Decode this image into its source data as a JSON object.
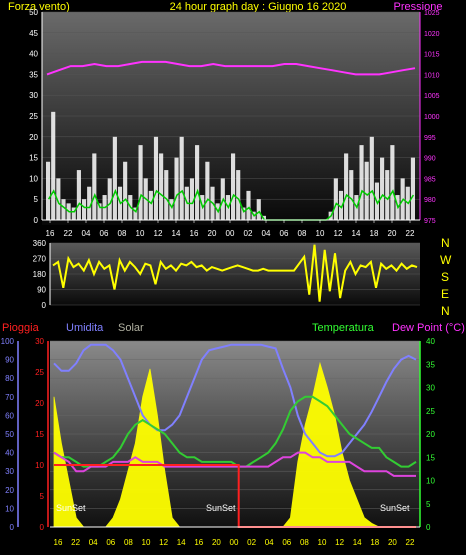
{
  "header": {
    "wind_title": "Forza vento)",
    "center_title": "24 hour graph day : Giugno 16 2020",
    "pressure_title": "Pressione"
  },
  "bottom_legend": {
    "rain": "Pioggia",
    "humidity": "Umidita",
    "solar": "Solar",
    "temperature": "Temperatura",
    "dewpoint": "Dew Point (°C)"
  },
  "sunset_labels": [
    "SunSet",
    "SunSet",
    "SunSet"
  ],
  "compass": [
    "N",
    "W",
    "S",
    "E",
    "N"
  ],
  "colors": {
    "wind": "#ffffff",
    "gust_avg": "#00cc00",
    "pressure": "#ff33ff",
    "direction": "#ffff00",
    "rain": "#ff2020",
    "humidity": "#8080ff",
    "solar": "#ffff00",
    "temperature": "#33cc33",
    "dewpoint": "#dd44dd",
    "title": "#ffff00"
  },
  "chart_data": [
    {
      "type": "line",
      "name": "wind-pressure",
      "x_ticks": [
        "16",
        "22",
        "04",
        "06",
        "08",
        "10",
        "12",
        "14",
        "16",
        "20",
        "00",
        "02",
        "04",
        "06",
        "08",
        "10",
        "12",
        "14",
        "18",
        "20",
        "22"
      ],
      "ylim_left": [
        0,
        50
      ],
      "yticks_left": [
        "0",
        "5",
        "10",
        "15",
        "20",
        "25",
        "30",
        "35",
        "40",
        "45",
        "50"
      ],
      "ylim_right": [
        975,
        1025
      ],
      "yticks_right": [
        "975",
        "980",
        "985",
        "990",
        "995",
        "1000",
        "1005",
        "1010",
        "1015",
        "1020",
        "1025"
      ],
      "series": [
        {
          "key": "pressure",
          "axis": "right",
          "values": [
            1010,
            1011,
            1012,
            1012,
            1012.5,
            1012,
            1012,
            1012.5,
            1013,
            1013,
            1013,
            1012.5,
            1012,
            1012,
            1012.5,
            1012,
            1012,
            1012,
            1012,
            1012,
            1012.5,
            1012.5,
            1012,
            1011.5,
            1011,
            1010.5,
            1010,
            1010,
            1010,
            1010.5,
            1011,
            1011.5
          ]
        },
        {
          "key": "wind",
          "axis": "left",
          "values": [
            14,
            26,
            10,
            5,
            4,
            3,
            12,
            5,
            8,
            16,
            4,
            6,
            10,
            20,
            8,
            14,
            6,
            3,
            18,
            10,
            7,
            20,
            16,
            12,
            5,
            15,
            20,
            8,
            10,
            18,
            6,
            14,
            8,
            4,
            10,
            6,
            16,
            12,
            3,
            7,
            2,
            5,
            1,
            0,
            0,
            0,
            0,
            0,
            0,
            0,
            0,
            0,
            0,
            0,
            0,
            2,
            10,
            7,
            16,
            12,
            6,
            18,
            14,
            20,
            9,
            15,
            12,
            18,
            6,
            10,
            8,
            15
          ]
        },
        {
          "key": "gust_avg",
          "axis": "left",
          "values": [
            5,
            7,
            4,
            3,
            2,
            2,
            4,
            3,
            3,
            6,
            3,
            3,
            4,
            7,
            4,
            5,
            3,
            2,
            6,
            5,
            4,
            7,
            6,
            5,
            3,
            6,
            7,
            4,
            4,
            7,
            3,
            5,
            4,
            2,
            5,
            3,
            6,
            5,
            2,
            3,
            1,
            2,
            0,
            0,
            0,
            0,
            0,
            0,
            0,
            0,
            0,
            0,
            0,
            0,
            0,
            1,
            4,
            3,
            6,
            5,
            3,
            7,
            6,
            7,
            4,
            6,
            5,
            7,
            3,
            5,
            4,
            6
          ]
        }
      ]
    },
    {
      "type": "line",
      "name": "wind-direction",
      "ylim": [
        0,
        360
      ],
      "yticks": [
        "0",
        "90",
        "180",
        "270",
        "360"
      ],
      "series": [
        {
          "key": "direction",
          "values": [
            230,
            250,
            100,
            270,
            220,
            240,
            200,
            260,
            180,
            250,
            210,
            230,
            90,
            260,
            200,
            250,
            220,
            180,
            240,
            230,
            120,
            250,
            210,
            230,
            200,
            240,
            230,
            250,
            220,
            230,
            200,
            220,
            210,
            200,
            210,
            220,
            230,
            220,
            210,
            200,
            200,
            210,
            200,
            200,
            200,
            200,
            200,
            200,
            240,
            280,
            60,
            350,
            20,
            320,
            80,
            300,
            40,
            200,
            250,
            180,
            230,
            220,
            250,
            100,
            240,
            210,
            230,
            200,
            240,
            210,
            230,
            220
          ]
        }
      ]
    },
    {
      "type": "line",
      "name": "rain-humidity-solar-temp",
      "x_ticks": [
        "16",
        "22",
        "04",
        "06",
        "08",
        "10",
        "12",
        "14",
        "16",
        "20",
        "00",
        "02",
        "04",
        "06",
        "08",
        "10",
        "12",
        "14",
        "18",
        "20",
        "22"
      ],
      "ylim_humidity": [
        0,
        100
      ],
      "yticks_humidity": [
        "0",
        "10",
        "20",
        "30",
        "40",
        "50",
        "60",
        "70",
        "80",
        "90",
        "100"
      ],
      "ylim_rain": [
        0,
        30
      ],
      "yticks_rain": [
        "0",
        "5",
        "10",
        "15",
        "20",
        "25",
        "30"
      ],
      "ylim_temp": [
        0,
        40
      ],
      "yticks_temp": [
        "0",
        "5",
        "10",
        "15",
        "20",
        "25",
        "30",
        "35",
        "40"
      ],
      "series": [
        {
          "key": "humidity",
          "axis": "humidity",
          "values": [
            88,
            84,
            84,
            88,
            95,
            98,
            98,
            98,
            95,
            90,
            80,
            70,
            60,
            55,
            52,
            52,
            55,
            60,
            70,
            80,
            90,
            95,
            96,
            97,
            98,
            98,
            98,
            98,
            98,
            97,
            96,
            85,
            75,
            60,
            50,
            45,
            40,
            38,
            38,
            40,
            45,
            50,
            55,
            62,
            70,
            78,
            85,
            90,
            92,
            90
          ]
        },
        {
          "key": "temperature",
          "axis": "temp",
          "values": [
            16,
            15,
            15,
            14,
            13,
            13,
            13,
            14,
            15,
            17,
            20,
            22,
            23,
            22,
            21,
            20,
            18,
            16,
            15,
            15,
            14,
            14,
            14,
            14,
            14,
            13,
            13,
            14,
            15,
            16,
            18,
            21,
            25,
            27,
            28,
            28,
            27,
            26,
            24,
            22,
            20,
            19,
            18,
            17,
            17,
            15,
            14,
            13,
            13,
            14
          ]
        },
        {
          "key": "dewpoint",
          "axis": "temp",
          "values": [
            16,
            15,
            14,
            12,
            12,
            13,
            13,
            13,
            14,
            14,
            14,
            15,
            14,
            14,
            14,
            13,
            13,
            13,
            13,
            13,
            13,
            13,
            13,
            13,
            13,
            13,
            13,
            13,
            13,
            13,
            14,
            15,
            15,
            16,
            16,
            15,
            15,
            14,
            14,
            14,
            14,
            13,
            12,
            12,
            12,
            12,
            11,
            11,
            11,
            11
          ]
        },
        {
          "key": "rain",
          "axis": "rain",
          "values": [
            10,
            10,
            10,
            10,
            10,
            10,
            10,
            10,
            10,
            10,
            10,
            10,
            10,
            10,
            10,
            10,
            10,
            10,
            10,
            10,
            10,
            10,
            10,
            10,
            10,
            0,
            0,
            0,
            0,
            0,
            0,
            0,
            0,
            0,
            0,
            0,
            0,
            0,
            0,
            0,
            0,
            0,
            0,
            0,
            0,
            0,
            0,
            0,
            0,
            0
          ]
        },
        {
          "key": "solar",
          "axis": "humidity",
          "values": [
            70,
            45,
            25,
            5,
            0,
            0,
            0,
            0,
            5,
            15,
            30,
            45,
            70,
            85,
            60,
            30,
            5,
            0,
            0,
            0,
            0,
            0,
            0,
            0,
            0,
            0,
            0,
            0,
            0,
            0,
            0,
            0,
            5,
            35,
            55,
            70,
            88,
            75,
            60,
            40,
            25,
            15,
            5,
            2,
            0,
            0,
            0,
            0,
            0,
            0
          ]
        }
      ]
    }
  ]
}
